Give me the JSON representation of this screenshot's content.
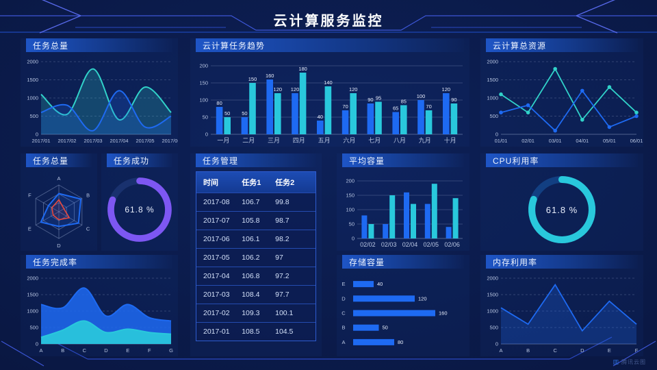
{
  "title": "云计算服务监控",
  "watermark": "腾讯云图",
  "colors": {
    "blue": "#1e6af2",
    "cyan": "#29c8dc",
    "teal": "#31d2c9",
    "purple": "#7d57f2",
    "red": "#e8493f",
    "axis": "#b9c6e2",
    "track_purple": "#19316e",
    "track_blue": "#123f82"
  },
  "panels": {
    "task_total": {
      "title": "任务总量",
      "chart_data": {
        "type": "area",
        "smooth": true,
        "x": [
          "2017/01",
          "2017/02",
          "2017/03",
          "2017/04",
          "2017/05",
          "2017/06"
        ],
        "ylim": [
          0,
          2000
        ],
        "yticks": [
          0,
          500,
          1000,
          1500,
          2000
        ],
        "series": [
          {
            "name": "series-teal",
            "color": "teal",
            "fill": 0.22,
            "values": [
              1100,
              550,
              1800,
              400,
              1300,
              600
            ]
          },
          {
            "name": "series-blue",
            "color": "blue",
            "fill": 0.22,
            "values": [
              600,
              800,
              100,
              1200,
              200,
              500
            ]
          }
        ]
      }
    },
    "task_trend": {
      "title": "云计算任务趋势",
      "chart_data": {
        "type": "bar",
        "labels": true,
        "categories": [
          "一月",
          "二月",
          "三月",
          "四月",
          "五月",
          "六月",
          "七月",
          "八月",
          "九月",
          "十月"
        ],
        "ylim": [
          0,
          200
        ],
        "yticks": [
          0,
          50,
          100,
          150,
          200
        ],
        "series": [
          {
            "name": "任务1",
            "color": "blue",
            "values": [
              80,
              50,
              160,
              120,
              40,
              70,
              90,
              65,
              100,
              120
            ]
          },
          {
            "name": "任务2",
            "color": "cyan",
            "values": [
              50,
              150,
              120,
              180,
              140,
              120,
              95,
              85,
              70,
              90
            ]
          }
        ]
      }
    },
    "total_resources": {
      "title": "云计算总资源",
      "chart_data": {
        "type": "line",
        "markers": true,
        "x": [
          "01/01",
          "02/01",
          "03/01",
          "04/01",
          "05/01",
          "06/01"
        ],
        "ylim": [
          0,
          2000
        ],
        "yticks": [
          0,
          500,
          1000,
          1500,
          2000
        ],
        "series": [
          {
            "name": "series-teal",
            "color": "teal",
            "values": [
              1100,
              600,
              1800,
              400,
              1300,
              600
            ]
          },
          {
            "name": "series-blue",
            "color": "blue",
            "values": [
              600,
              800,
              100,
              1200,
              200,
              500
            ]
          }
        ]
      }
    },
    "task_radar": {
      "title": "任务总量",
      "chart_data": {
        "type": "radar",
        "axes": [
          "A",
          "B",
          "C",
          "D",
          "E",
          "F"
        ],
        "max": 100,
        "series": [
          {
            "name": "series-blue",
            "color": "blue",
            "values": [
              68,
              95,
              85,
              55,
              78,
              45
            ]
          },
          {
            "name": "series-red",
            "color": "red",
            "values": [
              45,
              22,
              45,
              30,
              25,
              30
            ]
          }
        ]
      }
    },
    "task_success": {
      "title": "任务成功",
      "percent_label": "61.8 %",
      "chart_data": {
        "type": "donut",
        "percent": 61.8,
        "color": "purple",
        "track": "track_purple"
      }
    },
    "task_table": {
      "title": "任务管理",
      "table": {
        "columns": [
          "时间",
          "任务1",
          "任务2"
        ],
        "rows": [
          [
            "2017-08",
            "106.7",
            "99.8"
          ],
          [
            "2017-07",
            "105.8",
            "98.7"
          ],
          [
            "2017-06",
            "106.1",
            "98.2"
          ],
          [
            "2017-05",
            "106.2",
            "97"
          ],
          [
            "2017-04",
            "106.8",
            "97.2"
          ],
          [
            "2017-03",
            "108.4",
            "97.7"
          ],
          [
            "2017-02",
            "109.3",
            "100.1"
          ],
          [
            "2017-01",
            "108.5",
            "104.5"
          ]
        ]
      }
    },
    "avg_capacity": {
      "title": "平均容量",
      "chart_data": {
        "type": "bar",
        "labels": false,
        "categories": [
          "02/02",
          "02/03",
          "02/04",
          "02/05",
          "02/06"
        ],
        "ylim": [
          0,
          200
        ],
        "yticks": [
          0,
          50,
          100,
          150,
          200
        ],
        "series": [
          {
            "name": "series-blue",
            "color": "blue",
            "values": [
              80,
              50,
              160,
              120,
              40
            ]
          },
          {
            "name": "series-cyan",
            "color": "cyan",
            "values": [
              50,
              150,
              120,
              190,
              140
            ]
          }
        ]
      }
    },
    "cpu": {
      "title": "CPU利用率",
      "percent_label": "61.8 %",
      "chart_data": {
        "type": "donut",
        "percent": 61.8,
        "color": "cyan",
        "track": "track_blue"
      }
    },
    "completion": {
      "title": "任务完成率",
      "chart_data": {
        "type": "area",
        "smooth": true,
        "x": [
          "A",
          "B",
          "C",
          "D",
          "E",
          "F",
          "G"
        ],
        "ylim": [
          0,
          2000
        ],
        "yticks": [
          0,
          500,
          1000,
          1500,
          2000
        ],
        "series": [
          {
            "name": "series-blue",
            "color": "blue",
            "fill": 0.85,
            "values": [
              1200,
              1100,
              1700,
              850,
              1200,
              800,
              700
            ]
          },
          {
            "name": "series-cyan",
            "color": "cyan",
            "fill": 0.92,
            "values": [
              200,
              420,
              700,
              350,
              450,
              350,
              300
            ]
          }
        ]
      }
    },
    "storage": {
      "title": "存储容量",
      "chart_data": {
        "type": "hbar",
        "color": "blue",
        "xmax": 160,
        "categories": [
          "E",
          "D",
          "C",
          "B",
          "A"
        ],
        "values": [
          40,
          120,
          160,
          50,
          80
        ]
      }
    },
    "memory": {
      "title": "内存利用率",
      "chart_data": {
        "type": "line",
        "markers": false,
        "x": [
          "A",
          "B",
          "C",
          "D",
          "E",
          "F"
        ],
        "ylim": [
          0,
          2000
        ],
        "yticks": [
          0,
          500,
          1000,
          1500,
          2000
        ],
        "series": [
          {
            "name": "series-blue",
            "color": "blue",
            "fill": 0.25,
            "values": [
              1100,
              600,
              1800,
              400,
              1300,
              600
            ]
          }
        ]
      }
    }
  }
}
